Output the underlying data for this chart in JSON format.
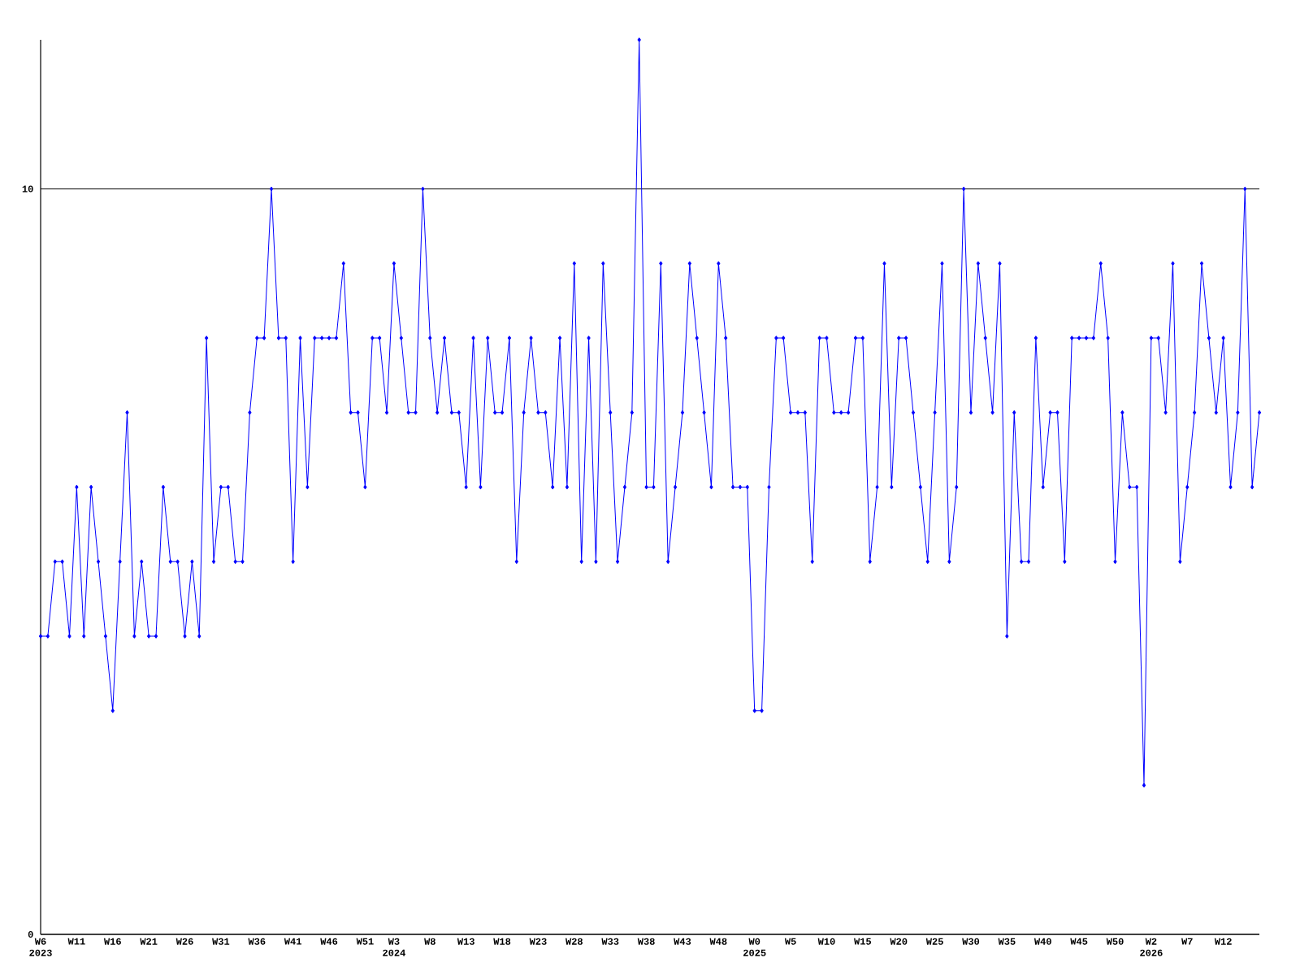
{
  "chart_data": {
    "type": "line",
    "categories": [
      "W6 2023",
      null,
      null,
      null,
      null,
      "W11",
      null,
      null,
      null,
      null,
      "W16",
      null,
      null,
      null,
      null,
      "W21",
      null,
      null,
      null,
      null,
      "W26",
      null,
      null,
      null,
      null,
      "W31",
      null,
      null,
      null,
      null,
      "W36",
      null,
      null,
      null,
      null,
      "W41",
      null,
      null,
      null,
      null,
      "W46",
      null,
      null,
      null,
      null,
      "W51",
      null,
      null,
      null,
      "W3 2024",
      null,
      null,
      null,
      null,
      "W8",
      null,
      null,
      null,
      null,
      "W13",
      null,
      null,
      null,
      null,
      "W18",
      null,
      null,
      null,
      null,
      "W23",
      null,
      null,
      null,
      null,
      "W28",
      null,
      null,
      null,
      null,
      "W33",
      null,
      null,
      null,
      null,
      "W38",
      null,
      null,
      null,
      null,
      "W43",
      null,
      null,
      null,
      null,
      "W48",
      null,
      null,
      null,
      null,
      "W0 2025",
      null,
      null,
      null,
      null,
      "W5",
      null,
      null,
      null,
      null,
      "W10",
      null,
      null,
      null,
      null,
      "W15",
      null,
      null,
      null,
      null,
      "W20",
      null,
      null,
      null,
      null,
      "W25",
      null,
      null,
      null,
      null,
      "W30",
      null,
      null,
      null,
      null,
      "W35",
      null,
      null,
      null,
      null,
      "W40",
      null,
      null,
      null,
      null,
      "W45",
      null,
      null,
      null,
      null,
      "W50",
      null,
      null,
      null,
      null,
      "W2 2026",
      null,
      null,
      null,
      null,
      "W7",
      null,
      null,
      null,
      null,
      "W12",
      null,
      null,
      null,
      null,
      null
    ],
    "values": [
      4,
      4,
      5,
      5,
      4,
      6,
      4,
      6,
      5,
      4,
      3,
      5,
      7,
      4,
      5,
      4,
      4,
      6,
      5,
      5,
      4,
      5,
      4,
      8,
      5,
      6,
      6,
      5,
      5,
      7,
      8,
      8,
      10,
      8,
      8,
      5,
      8,
      6,
      8,
      8,
      8,
      8,
      9,
      7,
      7,
      6,
      8,
      8,
      7,
      9,
      8,
      7,
      7,
      10,
      8,
      7,
      8,
      7,
      7,
      6,
      8,
      6,
      8,
      7,
      7,
      8,
      5,
      7,
      8,
      7,
      7,
      6,
      8,
      6,
      9,
      5,
      8,
      5,
      9,
      7,
      5,
      6,
      7,
      12,
      6,
      6,
      9,
      5,
      6,
      7,
      9,
      8,
      7,
      6,
      9,
      8,
      6,
      6,
      6,
      3,
      3,
      6,
      8,
      8,
      7,
      7,
      7,
      5,
      8,
      8,
      7,
      7,
      7,
      8,
      8,
      5,
      6,
      9,
      6,
      8,
      8,
      7,
      6,
      5,
      7,
      9,
      5,
      6,
      10,
      7,
      9,
      8,
      7,
      9,
      4,
      7,
      5,
      5,
      8,
      6,
      7,
      7,
      5,
      8,
      8,
      8,
      8,
      9,
      8,
      5,
      7,
      6,
      6,
      2,
      8,
      8,
      7,
      9,
      5,
      6,
      7,
      9,
      8,
      7,
      8,
      6,
      7,
      10,
      6,
      7
    ],
    "color": "#0000ff",
    "marker": "diamond",
    "ylim": [
      0,
      12
    ],
    "yticks": [
      0,
      10
    ],
    "grid": "y"
  }
}
